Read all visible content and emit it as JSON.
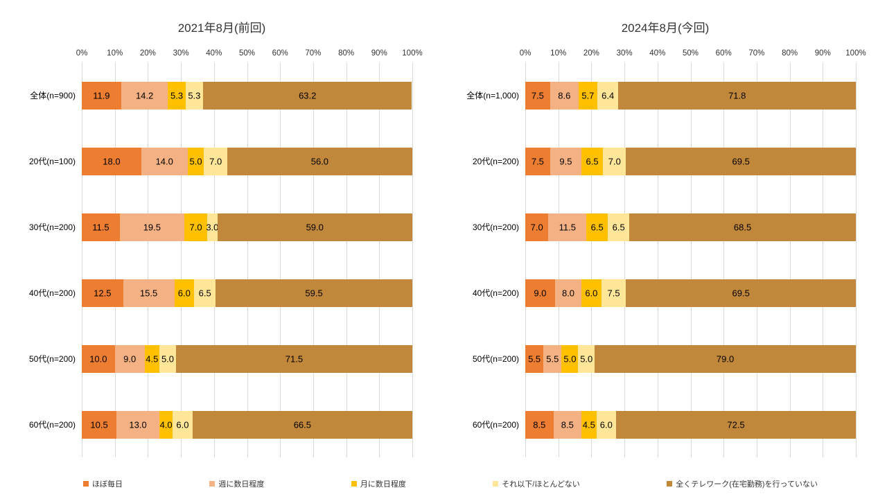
{
  "chart_data": [
    {
      "type": "bar",
      "orientation": "horizontal",
      "stacked": true,
      "title": "2021年8月(前回)",
      "xlim": [
        0,
        100
      ],
      "x_ticks": [
        "0%",
        "10%",
        "20%",
        "30%",
        "40%",
        "50%",
        "60%",
        "70%",
        "80%",
        "90%",
        "100%"
      ],
      "grid": true,
      "categories": [
        "全体(n=900)",
        "20代(n=100)",
        "30代(n=200)",
        "40代(n=200)",
        "50代(n=200)",
        "60代(n=200)"
      ],
      "series": [
        {
          "name": "ほぼ毎日",
          "color": "#ED7D31",
          "values": [
            11.9,
            18.0,
            11.5,
            12.5,
            10.0,
            10.5
          ]
        },
        {
          "name": "週に数日程度",
          "color": "#F4B183",
          "values": [
            14.2,
            14.0,
            19.5,
            15.5,
            9.0,
            13.0
          ]
        },
        {
          "name": "月に数日程度",
          "color": "#FFC000",
          "values": [
            5.3,
            5.0,
            7.0,
            6.0,
            4.5,
            4.0
          ]
        },
        {
          "name": "それ以下/ほとんどない",
          "color": "#FFE699",
          "values": [
            5.3,
            7.0,
            3.0,
            6.5,
            5.0,
            6.0
          ]
        },
        {
          "name": "全くテレワーク(在宅勤務)を行っていない",
          "color": "#C1883C",
          "values": [
            63.2,
            56.0,
            59.0,
            59.5,
            71.5,
            66.5
          ]
        }
      ]
    },
    {
      "type": "bar",
      "orientation": "horizontal",
      "stacked": true,
      "title": "2024年8月(今回)",
      "xlim": [
        0,
        100
      ],
      "x_ticks": [
        "0%",
        "10%",
        "20%",
        "30%",
        "40%",
        "50%",
        "60%",
        "70%",
        "80%",
        "90%",
        "100%"
      ],
      "grid": true,
      "categories": [
        "全体(n=1,000)",
        "20代(n=200)",
        "30代(n=200)",
        "40代(n=200)",
        "50代(n=200)",
        "60代(n=200)"
      ],
      "series": [
        {
          "name": "ほぼ毎日",
          "color": "#ED7D31",
          "values": [
            7.5,
            7.5,
            7.0,
            9.0,
            5.5,
            8.5
          ]
        },
        {
          "name": "週に数日程度",
          "color": "#F4B183",
          "values": [
            8.6,
            9.5,
            11.5,
            8.0,
            5.5,
            8.5
          ]
        },
        {
          "name": "月に数日程度",
          "color": "#FFC000",
          "values": [
            5.7,
            6.5,
            6.5,
            6.0,
            5.0,
            4.5
          ]
        },
        {
          "name": "それ以下/ほとんどない",
          "color": "#FFE699",
          "values": [
            6.4,
            7.0,
            6.5,
            7.5,
            5.0,
            6.0
          ]
        },
        {
          "name": "全くテレワーク(在宅勤務)を行っていない",
          "color": "#C1883C",
          "values": [
            71.8,
            69.5,
            68.5,
            69.5,
            79.0,
            72.5
          ]
        }
      ]
    }
  ],
  "legend": {
    "position": "bottom",
    "items": [
      {
        "label": "ほぼ毎日",
        "color": "#ED7D31"
      },
      {
        "label": "週に数日程度",
        "color": "#F4B183"
      },
      {
        "label": "月に数日程度",
        "color": "#FFC000"
      },
      {
        "label": "それ以下/ほとんどない",
        "color": "#FFE699"
      },
      {
        "label": "全くテレワーク(在宅勤務)を行っていない",
        "color": "#C1883C"
      }
    ]
  }
}
